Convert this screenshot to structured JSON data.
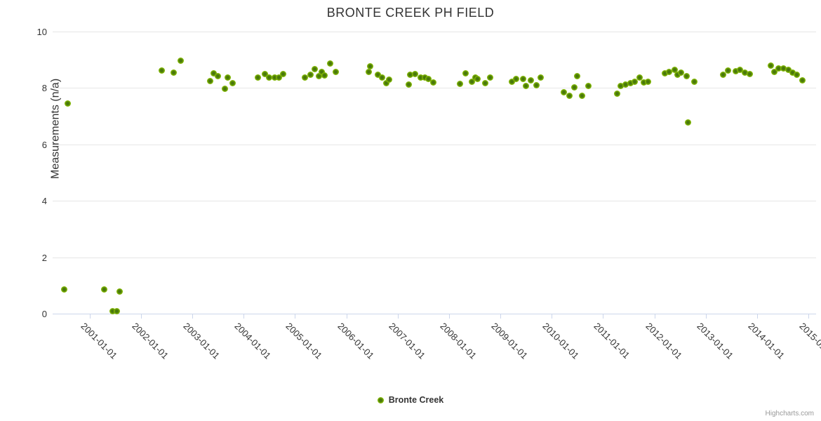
{
  "title": "BRONTE CREEK PH FIELD",
  "credits": "Highcharts.com",
  "colors": {
    "title_text": "#333333",
    "axis_label_text": "#333333",
    "gridline": "#e6e6e6",
    "axis_line": "#ccd6eb",
    "marker_green_outer": "#8dc70a",
    "marker_green_inner": "#46750b",
    "credits_text": "#999999"
  },
  "chart_data": {
    "type": "scatter",
    "title": "BRONTE CREEK PH FIELD",
    "xlabel": "",
    "ylabel": "Measurements (n/a)",
    "grid": "horizontal-only",
    "legend_position": "bottom-center",
    "x_axis": {
      "kind": "datetime-years",
      "min": 2000.28,
      "max": 2015.15,
      "tick_years": [
        2001,
        2002,
        2003,
        2004,
        2005,
        2006,
        2007,
        2008,
        2009,
        2010,
        2011,
        2012,
        2013,
        2014,
        2015
      ],
      "tick_label_suffix": "-01-01",
      "label_rotation_deg": 45
    },
    "y_axis": {
      "min": 0,
      "max": 10,
      "ticks": [
        0,
        2,
        4,
        6,
        8,
        10
      ]
    },
    "series": [
      {
        "name": "Bronte Creek",
        "color": "#7fb306",
        "points": [
          [
            2000.5,
            0.85
          ],
          [
            2000.58,
            7.46
          ],
          [
            2001.29,
            0.85
          ],
          [
            2001.45,
            0.08
          ],
          [
            2001.53,
            0.08
          ],
          [
            2001.59,
            0.78
          ],
          [
            2002.41,
            8.63
          ],
          [
            2002.64,
            8.55
          ],
          [
            2002.78,
            8.97
          ],
          [
            2003.35,
            8.24
          ],
          [
            2003.41,
            8.53
          ],
          [
            2003.5,
            8.43
          ],
          [
            2003.63,
            7.97
          ],
          [
            2003.69,
            8.38
          ],
          [
            2003.78,
            8.16
          ],
          [
            2004.28,
            8.36
          ],
          [
            2004.42,
            8.5
          ],
          [
            2004.5,
            8.38
          ],
          [
            2004.61,
            8.36
          ],
          [
            2004.69,
            8.38
          ],
          [
            2004.77,
            8.5
          ],
          [
            2005.2,
            8.38
          ],
          [
            2005.3,
            8.48
          ],
          [
            2005.39,
            8.66
          ],
          [
            2005.46,
            8.43
          ],
          [
            2005.52,
            8.56
          ],
          [
            2005.57,
            8.45
          ],
          [
            2005.68,
            8.87
          ],
          [
            2005.79,
            8.56
          ],
          [
            2006.44,
            8.56
          ],
          [
            2006.47,
            8.78
          ],
          [
            2006.62,
            8.48
          ],
          [
            2006.7,
            8.36
          ],
          [
            2006.78,
            8.18
          ],
          [
            2006.84,
            8.3
          ],
          [
            2007.22,
            8.13
          ],
          [
            2007.25,
            8.48
          ],
          [
            2007.34,
            8.5
          ],
          [
            2007.45,
            8.38
          ],
          [
            2007.53,
            8.36
          ],
          [
            2007.6,
            8.33
          ],
          [
            2007.69,
            8.2
          ],
          [
            2008.22,
            8.14
          ],
          [
            2008.32,
            8.53
          ],
          [
            2008.44,
            8.23
          ],
          [
            2008.52,
            8.38
          ],
          [
            2008.56,
            8.33
          ],
          [
            2008.71,
            8.18
          ],
          [
            2008.8,
            8.38
          ],
          [
            2009.23,
            8.23
          ],
          [
            2009.31,
            8.33
          ],
          [
            2009.45,
            8.33
          ],
          [
            2009.5,
            8.08
          ],
          [
            2009.59,
            8.28
          ],
          [
            2009.71,
            8.1
          ],
          [
            2009.79,
            8.36
          ],
          [
            2010.24,
            7.86
          ],
          [
            2010.35,
            7.73
          ],
          [
            2010.44,
            8.03
          ],
          [
            2010.5,
            8.43
          ],
          [
            2010.59,
            7.73
          ],
          [
            2010.71,
            8.08
          ],
          [
            2011.27,
            7.81
          ],
          [
            2011.34,
            8.06
          ],
          [
            2011.44,
            8.12
          ],
          [
            2011.53,
            8.18
          ],
          [
            2011.62,
            8.22
          ],
          [
            2011.71,
            8.38
          ],
          [
            2011.79,
            8.2
          ],
          [
            2011.88,
            8.22
          ],
          [
            2012.2,
            8.53
          ],
          [
            2012.29,
            8.57
          ],
          [
            2012.4,
            8.65
          ],
          [
            2012.45,
            8.48
          ],
          [
            2012.52,
            8.55
          ],
          [
            2012.63,
            8.43
          ],
          [
            2012.66,
            6.79
          ],
          [
            2012.78,
            8.21
          ],
          [
            2013.34,
            8.46
          ],
          [
            2013.44,
            8.63
          ],
          [
            2013.59,
            8.6
          ],
          [
            2013.67,
            8.65
          ],
          [
            2013.76,
            8.55
          ],
          [
            2013.86,
            8.5
          ],
          [
            2014.27,
            8.8
          ],
          [
            2014.33,
            8.58
          ],
          [
            2014.42,
            8.7
          ],
          [
            2014.51,
            8.7
          ],
          [
            2014.61,
            8.65
          ],
          [
            2014.69,
            8.55
          ],
          [
            2014.78,
            8.48
          ],
          [
            2014.89,
            8.26
          ]
        ]
      }
    ]
  }
}
